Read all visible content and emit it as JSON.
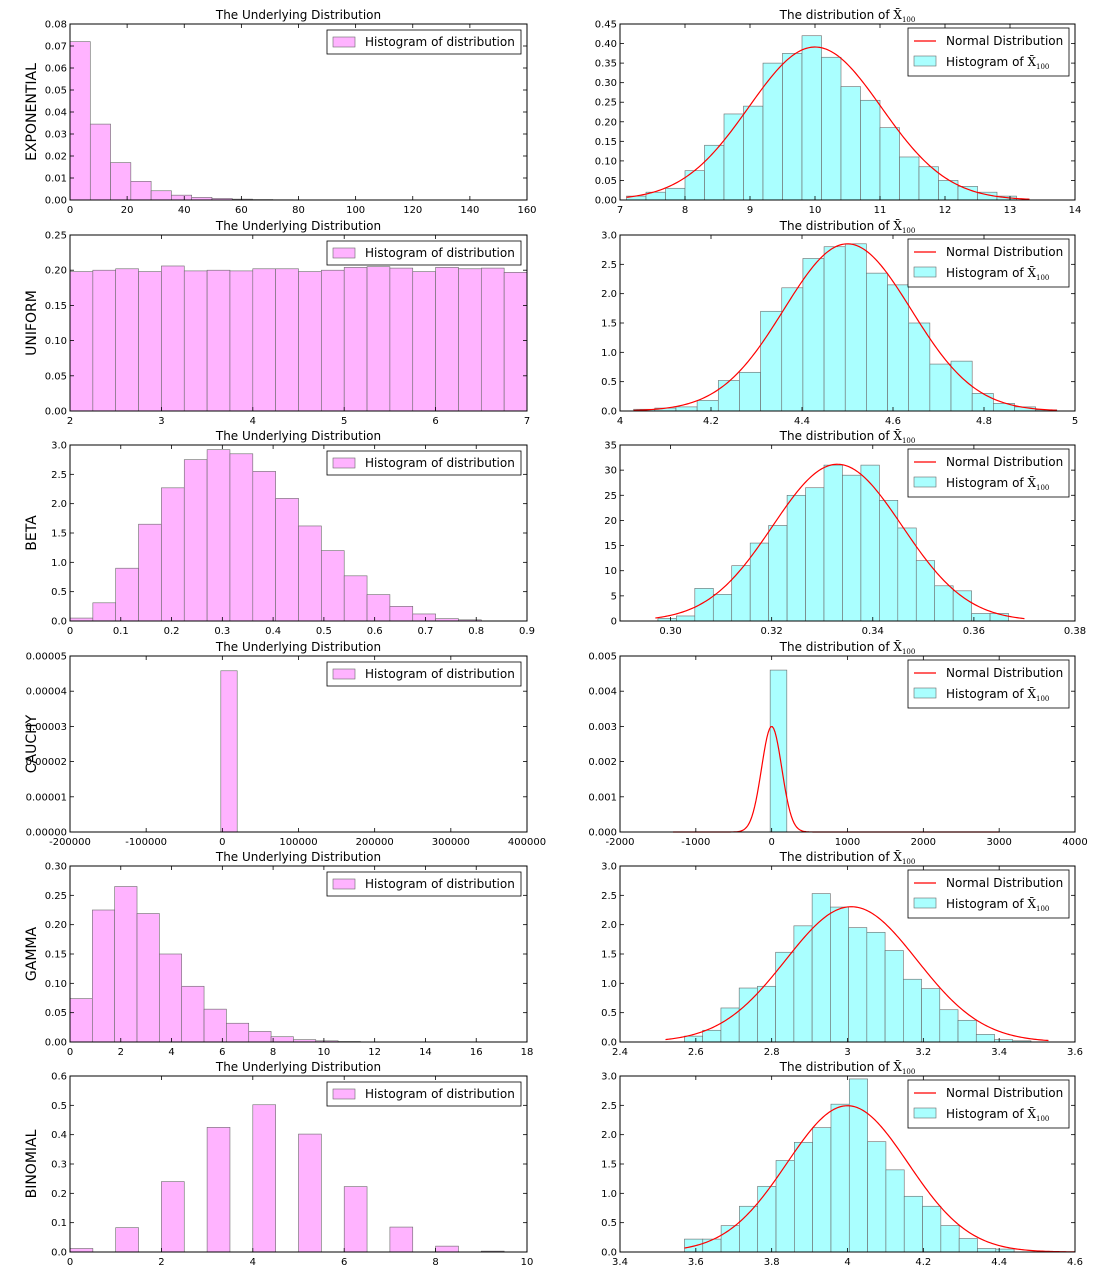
{
  "figure": {
    "rows": [
      "EXPONENTIAL",
      "UNIFORM",
      "BETA",
      "CAUCHY",
      "GAMMA",
      "BINOMIAL"
    ],
    "left_title": "The Underlying Distribution",
    "right_title_prefix": "The distribution of ",
    "right_title_symbol": "X̄",
    "right_title_sub": "100",
    "legend_hist_left": "Histogram of distribution",
    "legend_normal": "Normal Distribution",
    "legend_hist_right_prefix": "Histogram  of ",
    "colors": {
      "left_bar": "#ffb3ff",
      "right_bar": "#aaffff",
      "normal": "#ff0000",
      "edge": "#6a6a6a"
    }
  },
  "chart_data": [
    {
      "type": "bar",
      "row": "EXPONENTIAL",
      "panel": "underlying",
      "title": "The Underlying Distribution",
      "ylabel": "EXPONENTIAL",
      "xlim": [
        0,
        160
      ],
      "ylim": [
        0,
        0.08
      ],
      "xticks": [
        0,
        20,
        40,
        60,
        80,
        100,
        120,
        140,
        160
      ],
      "yticks": [
        0.0,
        0.01,
        0.02,
        0.03,
        0.04,
        0.05,
        0.06,
        0.07,
        0.08
      ],
      "ytick_decimals": 2,
      "bin_start": 0,
      "bin_width": 7.1,
      "values": [
        0.072,
        0.0345,
        0.017,
        0.0085,
        0.0042,
        0.0022,
        0.0012,
        0.0007,
        0.0004,
        0.0002,
        0.00012,
        8e-05
      ],
      "legend": [
        "Histogram of distribution"
      ]
    },
    {
      "type": "bar",
      "row": "EXPONENTIAL",
      "panel": "sample_mean",
      "title": "The distribution of X̄100",
      "xlim": [
        7,
        14
      ],
      "ylim": [
        0,
        0.45
      ],
      "xticks": [
        7,
        8,
        9,
        10,
        11,
        12,
        13,
        14
      ],
      "yticks": [
        0.0,
        0.05,
        0.1,
        0.15,
        0.2,
        0.25,
        0.3,
        0.35,
        0.4,
        0.45
      ],
      "ytick_decimals": 2,
      "bin_start": 7.1,
      "bin_width": 0.3,
      "values": [
        0.01,
        0.02,
        0.03,
        0.075,
        0.14,
        0.22,
        0.24,
        0.35,
        0.375,
        0.42,
        0.365,
        0.29,
        0.255,
        0.185,
        0.11,
        0.085,
        0.05,
        0.035,
        0.02,
        0.01
      ],
      "normal": {
        "mean": 10.0,
        "sd": 1.02,
        "xmin": 7.1,
        "xmax": 13.3
      },
      "legend": [
        "Normal Distribution",
        "Histogram  of X̄100"
      ]
    },
    {
      "type": "bar",
      "row": "UNIFORM",
      "panel": "underlying",
      "title": "The Underlying Distribution",
      "ylabel": "UNIFORM",
      "xlim": [
        2,
        7
      ],
      "ylim": [
        0,
        0.25
      ],
      "xticks": [
        2,
        3,
        4,
        5,
        6,
        7
      ],
      "yticks": [
        0.0,
        0.05,
        0.1,
        0.15,
        0.2,
        0.25
      ],
      "ytick_decimals": 2,
      "bin_start": 2,
      "bin_width": 0.25,
      "values": [
        0.198,
        0.2,
        0.202,
        0.198,
        0.206,
        0.199,
        0.2,
        0.199,
        0.202,
        0.202,
        0.198,
        0.2,
        0.204,
        0.205,
        0.203,
        0.198,
        0.204,
        0.202,
        0.203,
        0.197
      ],
      "legend": [
        "Histogram of distribution"
      ]
    },
    {
      "type": "bar",
      "row": "UNIFORM",
      "panel": "sample_mean",
      "title": "The distribution of X̄100",
      "xlim": [
        4.0,
        5.0
      ],
      "ylim": [
        0,
        3.0
      ],
      "xticks": [
        4.0,
        4.2,
        4.4,
        4.6,
        4.8,
        5.0
      ],
      "yticks": [
        0.0,
        0.5,
        1.0,
        1.5,
        2.0,
        2.5,
        3.0
      ],
      "ytick_decimals": 1,
      "bin_start": 4.03,
      "bin_width": 0.0465,
      "values": [
        0.03,
        0.05,
        0.07,
        0.18,
        0.52,
        0.66,
        1.7,
        2.1,
        2.6,
        2.8,
        2.85,
        2.35,
        2.15,
        1.5,
        0.8,
        0.85,
        0.3,
        0.13,
        0.07,
        0.02
      ],
      "normal": {
        "mean": 4.5,
        "sd": 0.14,
        "xmin": 4.03,
        "xmax": 4.96
      },
      "legend": [
        "Normal Distribution",
        "Histogram  of X̄100"
      ]
    },
    {
      "type": "bar",
      "row": "BETA",
      "panel": "underlying",
      "title": "The Underlying Distribution",
      "ylabel": "BETA",
      "xlim": [
        0,
        0.9
      ],
      "ylim": [
        0,
        3.0
      ],
      "xticks": [
        0.0,
        0.1,
        0.2,
        0.3,
        0.4,
        0.5,
        0.6,
        0.7,
        0.8,
        0.9
      ],
      "yticks": [
        0.0,
        0.5,
        1.0,
        1.5,
        2.0,
        2.5,
        3.0
      ],
      "ytick_decimals": 1,
      "bin_start": 0,
      "bin_width": 0.045,
      "values": [
        0.05,
        0.31,
        0.9,
        1.65,
        2.27,
        2.75,
        2.92,
        2.85,
        2.55,
        2.09,
        1.62,
        1.2,
        0.77,
        0.45,
        0.25,
        0.12,
        0.04,
        0.02
      ],
      "legend": [
        "Histogram of distribution"
      ]
    },
    {
      "type": "bar",
      "row": "BETA",
      "panel": "sample_mean",
      "title": "The distribution of X̄100",
      "xlim": [
        0.29,
        0.38
      ],
      "ylim": [
        0,
        35
      ],
      "xticks": [
        0.3,
        0.32,
        0.34,
        0.36,
        0.38
      ],
      "yticks": [
        0,
        5,
        10,
        15,
        20,
        25,
        30,
        35
      ],
      "ytick_decimals": 0,
      "xtick_decimals": 2,
      "bin_start": 0.2975,
      "bin_width": 0.00365,
      "values": [
        0.5,
        1,
        6.5,
        5.3,
        11,
        15.5,
        19,
        25,
        26.5,
        31,
        29,
        31,
        24,
        18.5,
        12,
        7,
        6,
        1.5,
        1.5
      ],
      "normal": {
        "mean": 0.333,
        "sd": 0.0128,
        "xmin": 0.297,
        "xmax": 0.37
      },
      "legend": [
        "Normal Distribution",
        "Histogram  of X̄100"
      ]
    },
    {
      "type": "bar",
      "row": "CAUCHY",
      "panel": "underlying",
      "title": "The Underlying Distribution",
      "ylabel": "CAUCHY",
      "xlim": [
        -200000,
        400000
      ],
      "ylim": [
        0,
        5e-05
      ],
      "xticks": [
        -200000,
        -100000,
        0,
        100000,
        200000,
        300000,
        400000
      ],
      "yticks": [
        0.0,
        1e-05,
        2e-05,
        3e-05,
        4e-05,
        5e-05
      ],
      "ytick_decimals": 5,
      "bin_start": -2000,
      "bin_width": 21500,
      "values": [
        4.58e-05
      ],
      "legend": [
        "Histogram of distribution"
      ]
    },
    {
      "type": "bar",
      "row": "CAUCHY",
      "panel": "sample_mean",
      "title": "The distribution of X̄100",
      "xlim": [
        -2000,
        4000
      ],
      "ylim": [
        0,
        0.005
      ],
      "xticks": [
        -2000,
        -1000,
        0,
        1000,
        2000,
        3000,
        4000
      ],
      "yticks": [
        0.0,
        0.001,
        0.002,
        0.003,
        0.004,
        0.005
      ],
      "ytick_decimals": 3,
      "bin_start": -20,
      "bin_width": 220,
      "values": [
        0.0046
      ],
      "normal": {
        "mean": 0,
        "sd": 133,
        "xmin": -1300,
        "xmax": 3000
      },
      "legend": [
        "Normal Distribution",
        "Histogram  of X̄100"
      ]
    },
    {
      "type": "bar",
      "row": "GAMMA",
      "panel": "underlying",
      "title": "The Underlying Distribution",
      "ylabel": "GAMMA",
      "xlim": [
        0,
        18
      ],
      "ylim": [
        0,
        0.3
      ],
      "xticks": [
        0,
        2,
        4,
        6,
        8,
        10,
        12,
        14,
        16,
        18
      ],
      "yticks": [
        0.0,
        0.05,
        0.1,
        0.15,
        0.2,
        0.25,
        0.3
      ],
      "ytick_decimals": 2,
      "bin_start": 0,
      "bin_width": 0.88,
      "values": [
        0.074,
        0.225,
        0.265,
        0.219,
        0.15,
        0.095,
        0.056,
        0.032,
        0.018,
        0.009,
        0.004,
        0.002,
        0.0008
      ],
      "legend": [
        "Histogram of distribution"
      ]
    },
    {
      "type": "bar",
      "row": "GAMMA",
      "panel": "sample_mean",
      "title": "The distribution of X̄100",
      "xlim": [
        2.4,
        3.6
      ],
      "ylim": [
        0,
        3.0
      ],
      "xticks": [
        2.4,
        2.6,
        2.8,
        3.0,
        3.2,
        3.4,
        3.6
      ],
      "yticks": [
        0.0,
        0.5,
        1.0,
        1.5,
        2.0,
        2.5,
        3.0
      ],
      "ytick_decimals": 1,
      "bin_start": 2.57,
      "bin_width": 0.0481,
      "values": [
        0.1,
        0.2,
        0.58,
        0.92,
        0.95,
        1.53,
        1.98,
        2.53,
        2.3,
        1.95,
        1.87,
        1.56,
        1.07,
        0.91,
        0.55,
        0.37,
        0.13,
        0.04,
        0.02
      ],
      "normal": {
        "mean": 3.01,
        "sd": 0.173,
        "xmin": 2.52,
        "xmax": 3.53
      },
      "legend": [
        "Normal Distribution",
        "Histogram  of X̄100"
      ]
    },
    {
      "type": "bar",
      "row": "BINOMIAL",
      "panel": "underlying",
      "title": "The Underlying Distribution",
      "ylabel": "BINOMIAL",
      "xlim": [
        0,
        10
      ],
      "ylim": [
        0,
        0.6
      ],
      "xticks": [
        0,
        2,
        4,
        6,
        8,
        10
      ],
      "yticks": [
        0.0,
        0.1,
        0.2,
        0.3,
        0.4,
        0.5,
        0.6
      ],
      "ytick_decimals": 1,
      "bar_width": 0.5,
      "bar_starts": [
        0,
        1,
        2,
        3,
        4,
        5,
        6,
        7,
        8,
        9
      ],
      "values": [
        0.012,
        0.083,
        0.24,
        0.425,
        0.502,
        0.402,
        0.223,
        0.085,
        0.02,
        0.003
      ],
      "legend": [
        "Histogram of distribution"
      ]
    },
    {
      "type": "bar",
      "row": "BINOMIAL",
      "panel": "sample_mean",
      "title": "The distribution of X̄100",
      "xlim": [
        3.4,
        4.6
      ],
      "ylim": [
        0,
        3.0
      ],
      "xticks": [
        3.4,
        3.6,
        3.8,
        4.0,
        4.2,
        4.4,
        4.6
      ],
      "yticks": [
        0.0,
        0.5,
        1.0,
        1.5,
        2.0,
        2.5,
        3.0
      ],
      "ytick_decimals": 1,
      "bin_start": 3.57,
      "bin_width": 0.0483,
      "values": [
        0.22,
        0.22,
        0.45,
        0.78,
        1.12,
        1.56,
        1.87,
        2.12,
        2.52,
        2.95,
        1.88,
        1.4,
        0.95,
        0.78,
        0.45,
        0.23,
        0.06,
        0.05
      ],
      "normal": {
        "mean": 4.0,
        "sd": 0.16,
        "xmin": 3.57,
        "xmax": 4.6
      },
      "legend": [
        "Normal Distribution",
        "Histogram  of X̄100"
      ]
    }
  ]
}
